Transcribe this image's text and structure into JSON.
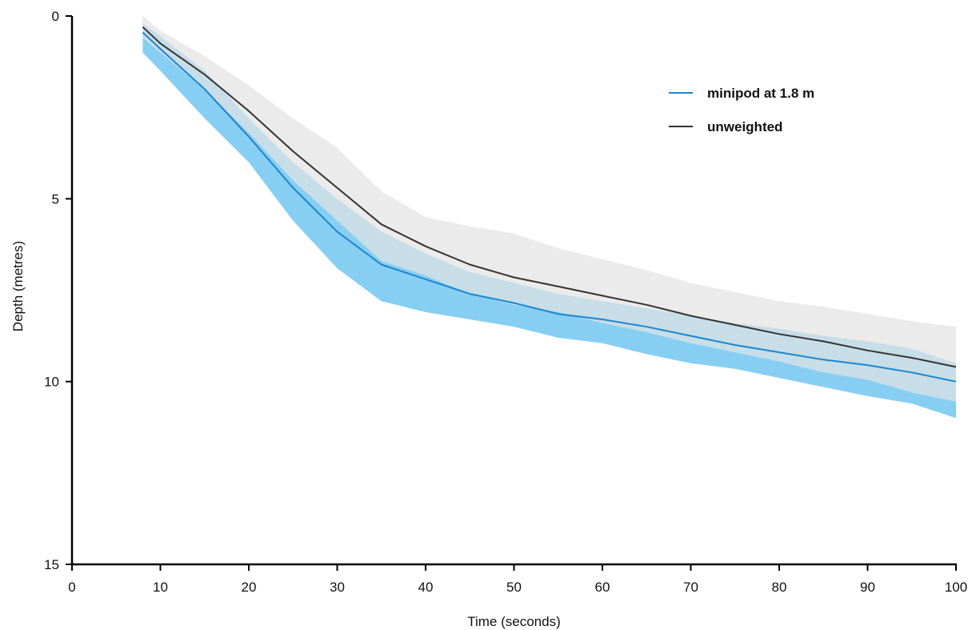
{
  "chart_data": {
    "type": "line",
    "title": "",
    "xlabel": "Time (seconds)",
    "ylabel": "Depth (metres)",
    "xlim": [
      0,
      100
    ],
    "ylim": [
      0,
      15
    ],
    "y_inverted": true,
    "grid": false,
    "legend_position": "top-right",
    "x_ticks": [
      0,
      10,
      20,
      30,
      40,
      50,
      60,
      70,
      80,
      90,
      100
    ],
    "y_ticks": [
      0,
      5,
      10,
      15
    ],
    "x": [
      8,
      10,
      15,
      20,
      25,
      30,
      35,
      40,
      45,
      50,
      55,
      60,
      65,
      70,
      75,
      80,
      85,
      90,
      95,
      100
    ],
    "series": [
      {
        "name": "minipod at 1.8 m",
        "color": "#1a85d0",
        "band_color": "#87cff2",
        "values": [
          0.45,
          0.9,
          2.0,
          3.3,
          4.7,
          5.9,
          6.8,
          7.2,
          7.6,
          7.85,
          8.15,
          8.3,
          8.5,
          8.75,
          9.0,
          9.2,
          9.4,
          9.55,
          9.75,
          10.0
        ],
        "lower": [
          0.2,
          0.55,
          1.5,
          2.8,
          4.0,
          5.0,
          5.9,
          6.5,
          7.0,
          7.3,
          7.6,
          7.8,
          8.0,
          8.2,
          8.4,
          8.55,
          8.75,
          8.9,
          9.1,
          9.5
        ],
        "upper": [
          1.0,
          1.5,
          2.8,
          4.0,
          5.6,
          6.9,
          7.8,
          8.1,
          8.3,
          8.5,
          8.8,
          8.95,
          9.25,
          9.5,
          9.65,
          9.9,
          10.15,
          10.4,
          10.6,
          11.0
        ]
      },
      {
        "name": "unweighted",
        "color": "#333333",
        "band_color": "#e3e3e3",
        "values": [
          0.3,
          0.75,
          1.6,
          2.6,
          3.7,
          4.7,
          5.7,
          6.3,
          6.8,
          7.15,
          7.4,
          7.65,
          7.9,
          8.2,
          8.45,
          8.7,
          8.9,
          9.15,
          9.35,
          9.6
        ],
        "lower": [
          0.0,
          0.4,
          1.1,
          1.9,
          2.8,
          3.6,
          4.8,
          5.5,
          5.75,
          5.95,
          6.35,
          6.65,
          6.95,
          7.3,
          7.55,
          7.8,
          7.95,
          8.15,
          8.35,
          8.5
        ],
        "upper": [
          0.6,
          1.0,
          2.0,
          3.2,
          4.5,
          5.6,
          6.7,
          7.1,
          7.6,
          7.9,
          8.1,
          8.4,
          8.65,
          8.95,
          9.2,
          9.45,
          9.75,
          9.95,
          10.3,
          10.55
        ]
      }
    ]
  }
}
